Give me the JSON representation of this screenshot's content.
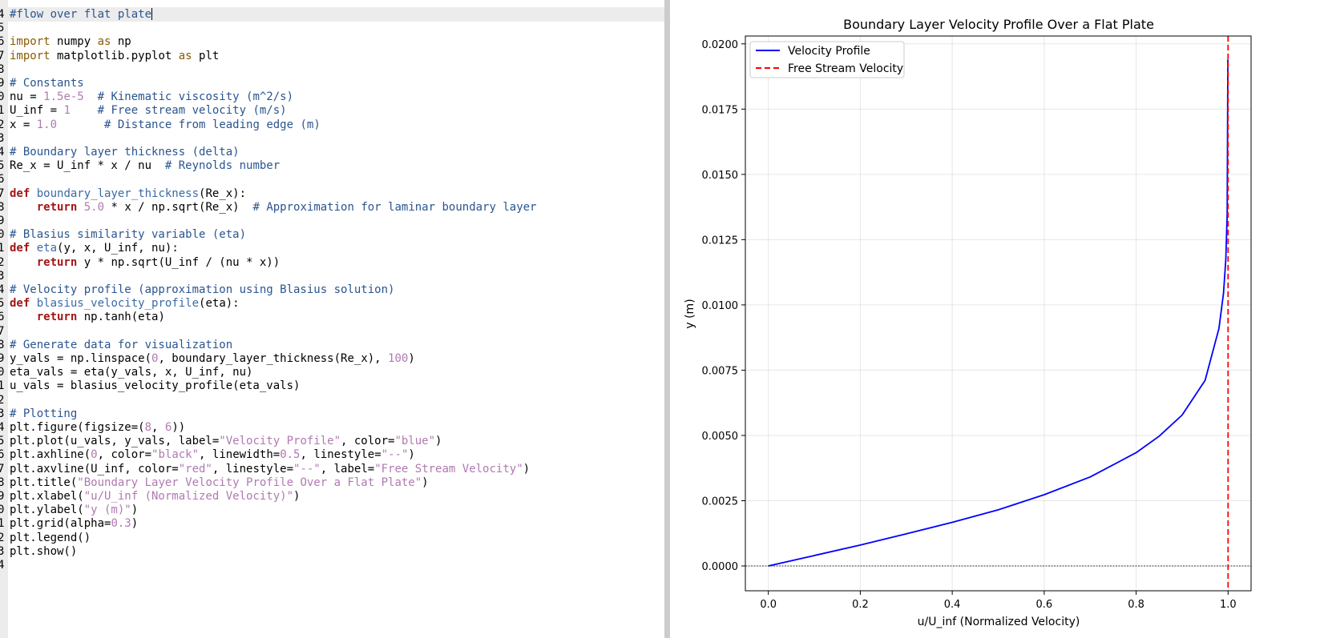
{
  "editor": {
    "cursor_line": 0,
    "lines": [
      {
        "n": "4",
        "tokens": [
          [
            "com",
            "#flow over flat plate"
          ]
        ]
      },
      {
        "n": "5",
        "tokens": []
      },
      {
        "n": "6",
        "tokens": [
          [
            "imp",
            "import"
          ],
          [
            "txt",
            " numpy "
          ],
          [
            "imp",
            "as"
          ],
          [
            "txt",
            " np"
          ]
        ]
      },
      {
        "n": "7",
        "tokens": [
          [
            "imp",
            "import"
          ],
          [
            "txt",
            " matplotlib.pyplot "
          ],
          [
            "imp",
            "as"
          ],
          [
            "txt",
            " plt"
          ]
        ]
      },
      {
        "n": "8",
        "tokens": []
      },
      {
        "n": "9",
        "tokens": [
          [
            "com",
            "# Constants"
          ]
        ]
      },
      {
        "n": "0",
        "tokens": [
          [
            "txt",
            "nu = "
          ],
          [
            "num",
            "1.5e-5"
          ],
          [
            "txt",
            "  "
          ],
          [
            "com",
            "# Kinematic viscosity (m^2/s)"
          ]
        ]
      },
      {
        "n": "1",
        "tokens": [
          [
            "txt",
            "U_inf = "
          ],
          [
            "num",
            "1"
          ],
          [
            "txt",
            "    "
          ],
          [
            "com",
            "# Free stream velocity (m/s)"
          ]
        ]
      },
      {
        "n": "2",
        "tokens": [
          [
            "txt",
            "x = "
          ],
          [
            "num",
            "1.0"
          ],
          [
            "txt",
            "       "
          ],
          [
            "com",
            "# Distance from leading edge (m)"
          ]
        ]
      },
      {
        "n": "3",
        "tokens": []
      },
      {
        "n": "4",
        "tokens": [
          [
            "com",
            "# Boundary layer thickness (delta)"
          ]
        ]
      },
      {
        "n": "5",
        "tokens": [
          [
            "txt",
            "Re_x = U_inf * x / nu  "
          ],
          [
            "com",
            "# Reynolds number"
          ]
        ]
      },
      {
        "n": "6",
        "tokens": []
      },
      {
        "n": "7",
        "tokens": [
          [
            "kw",
            "def"
          ],
          [
            "txt",
            " "
          ],
          [
            "fn",
            "boundary_layer_thickness"
          ],
          [
            "txt",
            "(Re_x):"
          ]
        ]
      },
      {
        "n": "8",
        "tokens": [
          [
            "txt",
            "    "
          ],
          [
            "kw",
            "return"
          ],
          [
            "txt",
            " "
          ],
          [
            "num",
            "5.0"
          ],
          [
            "txt",
            " * x / np.sqrt(Re_x)  "
          ],
          [
            "com",
            "# Approximation for laminar boundary layer"
          ]
        ]
      },
      {
        "n": "9",
        "tokens": []
      },
      {
        "n": "0",
        "tokens": [
          [
            "com",
            "# Blasius similarity variable (eta)"
          ]
        ]
      },
      {
        "n": "1",
        "tokens": [
          [
            "kw",
            "def"
          ],
          [
            "txt",
            " "
          ],
          [
            "fn",
            "eta"
          ],
          [
            "txt",
            "(y, x, U_inf, nu):"
          ]
        ]
      },
      {
        "n": "2",
        "tokens": [
          [
            "txt",
            "    "
          ],
          [
            "kw",
            "return"
          ],
          [
            "txt",
            " y * np.sqrt(U_inf / (nu * x))"
          ]
        ]
      },
      {
        "n": "3",
        "tokens": []
      },
      {
        "n": "4",
        "tokens": [
          [
            "com",
            "# Velocity profile (approximation using Blasius solution)"
          ]
        ]
      },
      {
        "n": "5",
        "tokens": [
          [
            "kw",
            "def"
          ],
          [
            "txt",
            " "
          ],
          [
            "fn",
            "blasius_velocity_profile"
          ],
          [
            "txt",
            "(eta):"
          ]
        ]
      },
      {
        "n": "6",
        "tokens": [
          [
            "txt",
            "    "
          ],
          [
            "kw",
            "return"
          ],
          [
            "txt",
            " np.tanh(eta)"
          ]
        ]
      },
      {
        "n": "7",
        "tokens": []
      },
      {
        "n": "8",
        "tokens": [
          [
            "com",
            "# Generate data for visualization"
          ]
        ]
      },
      {
        "n": "9",
        "tokens": [
          [
            "txt",
            "y_vals = np.linspace("
          ],
          [
            "num",
            "0"
          ],
          [
            "txt",
            ", boundary_layer_thickness(Re_x), "
          ],
          [
            "num",
            "100"
          ],
          [
            "txt",
            ")"
          ]
        ]
      },
      {
        "n": "0",
        "tokens": [
          [
            "txt",
            "eta_vals = eta(y_vals, x, U_inf, nu)"
          ]
        ]
      },
      {
        "n": "1",
        "tokens": [
          [
            "txt",
            "u_vals = blasius_velocity_profile(eta_vals)"
          ]
        ]
      },
      {
        "n": "2",
        "tokens": []
      },
      {
        "n": "3",
        "tokens": [
          [
            "com",
            "# Plotting"
          ]
        ]
      },
      {
        "n": "4",
        "tokens": [
          [
            "txt",
            "plt.figure(figsize=("
          ],
          [
            "num",
            "8"
          ],
          [
            "txt",
            ", "
          ],
          [
            "num",
            "6"
          ],
          [
            "txt",
            "))"
          ]
        ]
      },
      {
        "n": "5",
        "tokens": [
          [
            "txt",
            "plt.plot(u_vals, y_vals, label="
          ],
          [
            "str",
            "\"Velocity Profile\""
          ],
          [
            "txt",
            ", color="
          ],
          [
            "str",
            "\"blue\""
          ],
          [
            "txt",
            ")"
          ]
        ]
      },
      {
        "n": "6",
        "tokens": [
          [
            "txt",
            "plt.axhline("
          ],
          [
            "num",
            "0"
          ],
          [
            "txt",
            ", color="
          ],
          [
            "str",
            "\"black\""
          ],
          [
            "txt",
            ", linewidth="
          ],
          [
            "num",
            "0.5"
          ],
          [
            "txt",
            ", linestyle="
          ],
          [
            "str",
            "\"--\""
          ],
          [
            "txt",
            ")"
          ]
        ]
      },
      {
        "n": "7",
        "tokens": [
          [
            "txt",
            "plt.axvline(U_inf, color="
          ],
          [
            "str",
            "\"red\""
          ],
          [
            "txt",
            ", linestyle="
          ],
          [
            "str",
            "\"--\""
          ],
          [
            "txt",
            ", label="
          ],
          [
            "str",
            "\"Free Stream Velocity\""
          ],
          [
            "txt",
            ")"
          ]
        ]
      },
      {
        "n": "8",
        "tokens": [
          [
            "txt",
            "plt.title("
          ],
          [
            "str",
            "\"Boundary Layer Velocity Profile Over a Flat Plate\""
          ],
          [
            "txt",
            ")"
          ]
        ]
      },
      {
        "n": "9",
        "tokens": [
          [
            "txt",
            "plt.xlabel("
          ],
          [
            "str",
            "\"u/U_inf (Normalized Velocity)\""
          ],
          [
            "txt",
            ")"
          ]
        ]
      },
      {
        "n": "0",
        "tokens": [
          [
            "txt",
            "plt.ylabel("
          ],
          [
            "str",
            "\"y (m)\""
          ],
          [
            "txt",
            ")"
          ]
        ]
      },
      {
        "n": "1",
        "tokens": [
          [
            "txt",
            "plt.grid(alpha="
          ],
          [
            "num",
            "0.3"
          ],
          [
            "txt",
            ")"
          ]
        ]
      },
      {
        "n": "2",
        "tokens": [
          [
            "txt",
            "plt.legend()"
          ]
        ]
      },
      {
        "n": "3",
        "tokens": [
          [
            "txt",
            "plt.show()"
          ]
        ]
      },
      {
        "n": "4",
        "tokens": []
      }
    ]
  },
  "chart_data": {
    "type": "line",
    "title": "Boundary Layer Velocity Profile Over a Flat Plate",
    "xlabel": "u/U_inf (Normalized Velocity)",
    "ylabel": "y (m)",
    "xlim": [
      -0.05,
      1.05
    ],
    "ylim": [
      -0.00095,
      0.0203
    ],
    "xticks": [
      "0.0",
      "0.2",
      "0.4",
      "0.6",
      "0.8",
      "1.0"
    ],
    "yticks": [
      "0.0000",
      "0.0025",
      "0.0050",
      "0.0075",
      "0.0100",
      "0.0125",
      "0.0150",
      "0.0175",
      "0.0200"
    ],
    "grid": true,
    "legend_position": "upper-left",
    "series": [
      {
        "name": "Velocity Profile",
        "color": "#0000ff",
        "style": "solid",
        "x": [
          0.0,
          0.1,
          0.2,
          0.3,
          0.4,
          0.5,
          0.6,
          0.7,
          0.8,
          0.85,
          0.9,
          0.95,
          0.98,
          0.99,
          0.995,
          0.998,
          0.9995
        ],
        "y": [
          0.0,
          0.0004,
          0.0008,
          0.00123,
          0.00167,
          0.00215,
          0.00273,
          0.00341,
          0.00434,
          0.00497,
          0.00578,
          0.00711,
          0.00909,
          0.01044,
          0.01173,
          0.01348,
          0.0194
        ]
      },
      {
        "name": "Free Stream Velocity",
        "color": "#ff0000",
        "style": "dashed",
        "axvline": 1.0
      }
    ],
    "hline": {
      "y": 0.0,
      "color": "#000000",
      "style": "dotted"
    }
  }
}
